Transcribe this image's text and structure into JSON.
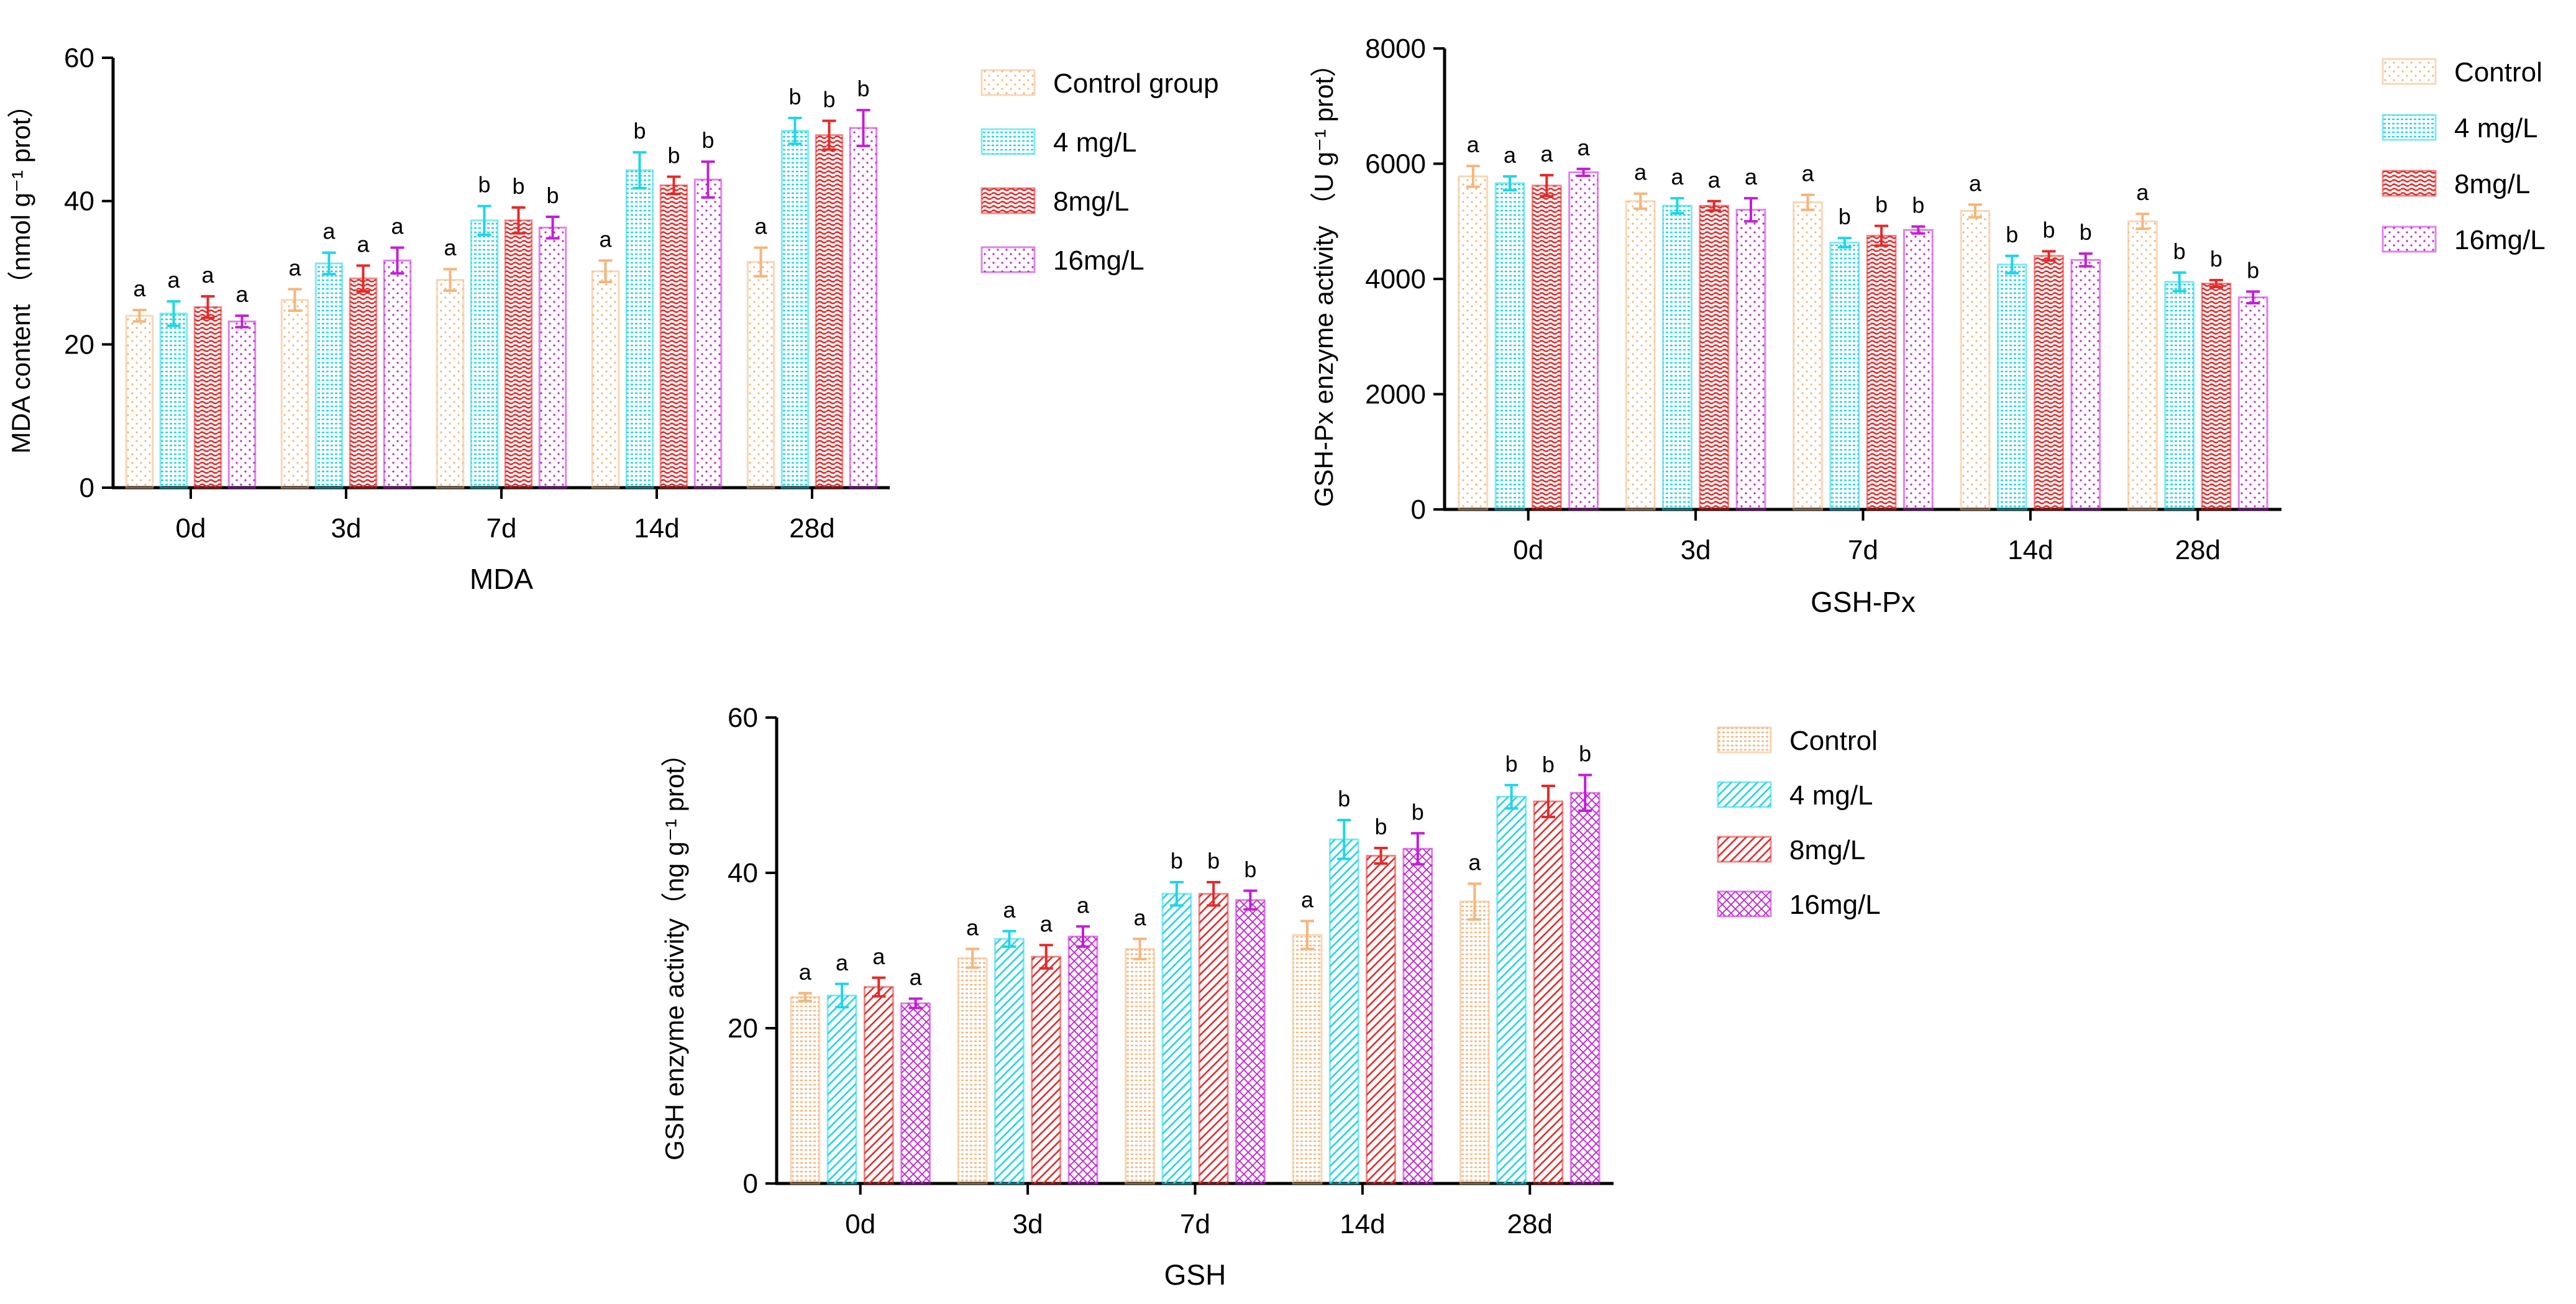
{
  "colors": {
    "control": "#f4b67c",
    "mg4": "#1fd6e6",
    "mg8": "#e42a2a",
    "mg16": "#c21fd6",
    "axis": "#000000"
  },
  "chart_data": [
    {
      "id": "mda",
      "type": "bar",
      "title": "",
      "xlabel": "MDA",
      "ylabel": "MDA content （nmol g⁻¹ prot）",
      "ylim": [
        0,
        60
      ],
      "yticks": [
        "0",
        "20",
        "40",
        "60"
      ],
      "ytick_values": [
        0,
        20,
        40,
        60
      ],
      "categories": [
        "0d",
        "3d",
        "7d",
        "14d",
        "28d"
      ],
      "legend_position": "right",
      "series": [
        {
          "name": "Control group",
          "key": "control",
          "pattern": "dots",
          "values": [
            24,
            26.2,
            29,
            30.2,
            31.5
          ],
          "errors": [
            0.8,
            1.5,
            1.5,
            1.5,
            2.0
          ],
          "labels": [
            "a",
            "a",
            "a",
            "a",
            "a"
          ]
        },
        {
          "name": "4 mg/L",
          "key": "mg4",
          "pattern": "grid",
          "values": [
            24.3,
            31.3,
            37.3,
            44.3,
            49.8
          ],
          "errors": [
            1.7,
            1.5,
            2.0,
            2.5,
            1.8
          ],
          "labels": [
            "a",
            "a",
            "b",
            "b",
            "b"
          ]
        },
        {
          "name": "8mg/L",
          "key": "mg8",
          "pattern": "wave",
          "values": [
            25.2,
            29.2,
            37.3,
            42.2,
            49.2
          ],
          "errors": [
            1.5,
            1.8,
            1.8,
            1.2,
            2.0
          ],
          "labels": [
            "a",
            "a",
            "b",
            "b",
            "b"
          ]
        },
        {
          "name": "16mg/L",
          "key": "mg16",
          "pattern": "dots",
          "values": [
            23.2,
            31.7,
            36.3,
            43.0,
            50.2
          ],
          "errors": [
            0.8,
            1.8,
            1.5,
            2.5,
            2.5
          ],
          "labels": [
            "a",
            "a",
            "b",
            "b",
            "b"
          ]
        }
      ]
    },
    {
      "id": "gshpx",
      "type": "bar",
      "title": "",
      "xlabel": "GSH-Px",
      "ylabel": "GSH-Px enzyme activity （U g⁻¹ prot）",
      "ylim": [
        0,
        8000
      ],
      "yticks": [
        "0",
        "2000",
        "4000",
        "6000",
        "8000"
      ],
      "ytick_values": [
        0,
        2000,
        4000,
        6000,
        8000
      ],
      "categories": [
        "0d",
        "3d",
        "7d",
        "14d",
        "28d"
      ],
      "legend_position": "right",
      "series": [
        {
          "name": "Control",
          "key": "control",
          "pattern": "dots",
          "values": [
            5780,
            5350,
            5330,
            5180,
            5000
          ],
          "errors": [
            180,
            130,
            130,
            110,
            130
          ],
          "labels": [
            "a",
            "a",
            "a",
            "a",
            "a"
          ]
        },
        {
          "name": "4 mg/L",
          "key": "mg4",
          "pattern": "grid",
          "values": [
            5660,
            5270,
            4630,
            4250,
            3950
          ],
          "errors": [
            120,
            130,
            80,
            150,
            160
          ],
          "labels": [
            "a",
            "a",
            "b",
            "b",
            "b"
          ]
        },
        {
          "name": "8mg/L",
          "key": "mg8",
          "pattern": "wave",
          "values": [
            5620,
            5270,
            4750,
            4400,
            3920
          ],
          "errors": [
            180,
            80,
            170,
            80,
            60
          ],
          "labels": [
            "a",
            "a",
            "b",
            "b",
            "b"
          ]
        },
        {
          "name": "16mg/L",
          "key": "mg16",
          "pattern": "dots",
          "values": [
            5850,
            5200,
            4850,
            4330,
            3680
          ],
          "errors": [
            60,
            200,
            60,
            110,
            100
          ],
          "labels": [
            "a",
            "a",
            "b",
            "b",
            "b"
          ]
        }
      ]
    },
    {
      "id": "gsh",
      "type": "bar",
      "title": "",
      "xlabel": "GSH",
      "ylabel": "GSH enzyme activity（ng g⁻¹ prot）",
      "ylim": [
        0,
        60
      ],
      "yticks": [
        "0",
        "20",
        "40",
        "60"
      ],
      "ytick_values": [
        0,
        20,
        40,
        60
      ],
      "categories": [
        "0d",
        "3d",
        "7d",
        "14d",
        "28d"
      ],
      "legend_position": "right",
      "series": [
        {
          "name": "Control",
          "key": "control",
          "pattern": "grid",
          "values": [
            24,
            29,
            30.2,
            32,
            36.3
          ],
          "errors": [
            0.5,
            1.2,
            1.3,
            1.8,
            2.3
          ],
          "labels": [
            "a",
            "a",
            "a",
            "a",
            "a"
          ]
        },
        {
          "name": "4 mg/L",
          "key": "mg4",
          "pattern": "diag",
          "values": [
            24.2,
            31.5,
            37.3,
            44.3,
            49.8
          ],
          "errors": [
            1.5,
            1.0,
            1.5,
            2.5,
            1.5
          ],
          "labels": [
            "a",
            "a",
            "b",
            "b",
            "b"
          ]
        },
        {
          "name": "8mg/L",
          "key": "mg8",
          "pattern": "diag",
          "values": [
            25.3,
            29.2,
            37.3,
            42.2,
            49.2
          ],
          "errors": [
            1.2,
            1.5,
            1.5,
            1.0,
            2.0
          ],
          "labels": [
            "a",
            "a",
            "b",
            "b",
            "b"
          ]
        },
        {
          "name": "16mg/L",
          "key": "mg16",
          "pattern": "cross",
          "values": [
            23.2,
            31.8,
            36.5,
            43.1,
            50.3
          ],
          "errors": [
            0.6,
            1.3,
            1.2,
            2.0,
            2.3
          ],
          "labels": [
            "a",
            "a",
            "b",
            "b",
            "b"
          ]
        }
      ]
    }
  ]
}
